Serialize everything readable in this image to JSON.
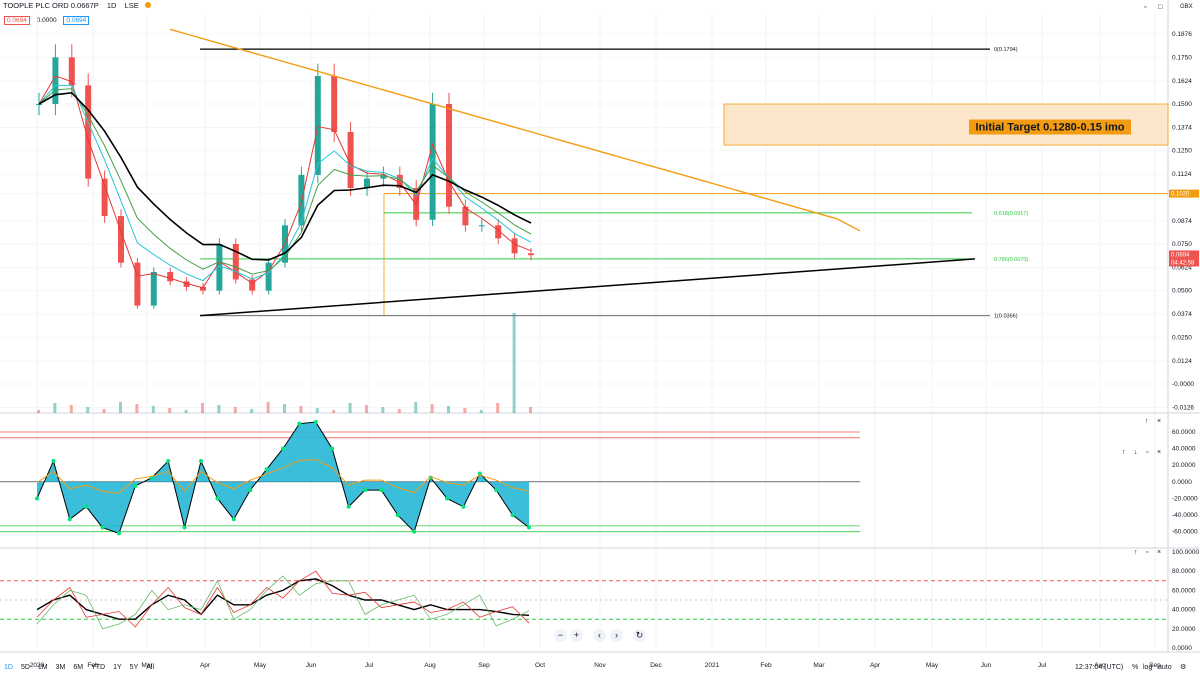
{
  "header": {
    "title": "TOOPLE PLC ORD 0.0667P",
    "interval": "1D",
    "exchange": "LSE",
    "bid": "0.0694",
    "spread": "0.0000",
    "ask": "0.0694",
    "currency": "GBX"
  },
  "colors": {
    "up": "#26a69a",
    "down": "#ef5350",
    "ema_fast": "#e53935",
    "ema_mid": "#26c6da",
    "ema_slow": "#43a047",
    "sma50": "#000000",
    "sma200": "#f39c12",
    "fib_green": "#2ecc40",
    "target_box": "#fde7cc",
    "osc_fill": "#26b7d6",
    "osc_line": "#f39c12"
  },
  "chart_data": [
    {
      "type": "line",
      "pane": "price",
      "title": "TOOPLE PLC ORD 0.0667P",
      "yticks": [
        "0.1876",
        "0.1750",
        "0.1624",
        "0.1500",
        "0.1374",
        "0.1250",
        "0.1124",
        "0.1020",
        "0.0874",
        "0.0750",
        "0.0624",
        "0.0500",
        "0.0374",
        "0.0250",
        "0.0124",
        "-0.0000",
        "-0.0126"
      ],
      "xticks": [
        "2020",
        "Feb",
        "Mar",
        "Apr",
        "May",
        "Jun",
        "Jul",
        "Aug",
        "Sep",
        "Oct",
        "Nov",
        "Dec",
        "2021",
        "Feb",
        "Mar",
        "Apr",
        "May",
        "Jun",
        "Jul",
        "Aug",
        "Sep"
      ],
      "ylim": [
        -0.015,
        0.195
      ],
      "x": [
        "2020-01-01",
        "2020-01-15",
        "2020-02-01",
        "2020-02-15",
        "2020-03-01",
        "2020-03-15",
        "2020-04-01",
        "2020-04-15",
        "2020-05-01",
        "2020-06-01",
        "2020-07-01",
        "2020-07-15",
        "2020-08-01",
        "2020-08-15",
        "2020-09-01",
        "2020-09-15",
        "2020-10-01",
        "2020-10-10",
        "2020-10-20",
        "2020-11-01",
        "2020-11-15",
        "2020-12-01",
        "2020-12-15",
        "2021-01-01",
        "2021-01-10",
        "2021-01-20",
        "2021-02-01",
        "2021-02-15",
        "2021-03-01",
        "2021-03-15",
        "2021-03-25"
      ],
      "series": [
        {
          "values": [
            0.15,
            0.175,
            0.16,
            0.11,
            0.09,
            0.065,
            0.042,
            0.06,
            0.055,
            0.052,
            0.05,
            0.075,
            0.056,
            0.05,
            0.065,
            0.085,
            0.112,
            0.165,
            0.135,
            0.105,
            0.11,
            0.112,
            0.105,
            0.088,
            0.15,
            0.095,
            0.085,
            0.085,
            0.078,
            0.07,
            0.069
          ]
        }
      ],
      "annotations": {
        "fib_0": "0(0.1794)",
        "fib_618": "0.618(0.0917)",
        "fib_786": "0.786(0.0670)",
        "fib_1": "1(0.0366)",
        "target_label": "Initial Target 0.1280-0.15 imo",
        "level_badge": "0.1020",
        "last_price": "0.0694",
        "countdown": "04:42:58",
        "price_scale_extra": "0.0624"
      }
    },
    {
      "type": "area",
      "pane": "oscillator",
      "yticks": [
        "60.0000",
        "40.0000",
        "20.0000",
        "0.0000",
        "-20.0000",
        "-40.0000",
        "-60.0000"
      ],
      "ylim": [
        -70,
        72
      ],
      "x": [
        "2020-01-01",
        "2020-01-15",
        "2020-02-01",
        "2020-02-15",
        "2020-03-01",
        "2020-03-15",
        "2020-04-01",
        "2020-04-15",
        "2020-05-01",
        "2020-06-01",
        "2020-07-01",
        "2020-07-15",
        "2020-08-01",
        "2020-08-15",
        "2020-09-01",
        "2020-09-15",
        "2020-10-01",
        "2020-10-10",
        "2020-10-20",
        "2020-11-01",
        "2020-11-15",
        "2020-12-01",
        "2020-12-15",
        "2021-01-01",
        "2021-01-10",
        "2021-01-20",
        "2021-02-01",
        "2021-02-15",
        "2021-03-01",
        "2021-03-15",
        "2021-03-25"
      ],
      "series": [
        {
          "values": [
            -20,
            25,
            -45,
            -30,
            -55,
            -62,
            -5,
            5,
            25,
            -55,
            25,
            -20,
            -45,
            -10,
            15,
            40,
            70,
            72,
            40,
            -30,
            -10,
            -10,
            -40,
            -60,
            5,
            -20,
            -30,
            10,
            -10,
            -40,
            -55
          ]
        }
      ]
    },
    {
      "type": "line",
      "pane": "rsi",
      "yticks": [
        "100.0000",
        "80.0000",
        "60.0000",
        "40.0000",
        "20.0000",
        "0.0000"
      ],
      "ylim": [
        0,
        100
      ],
      "x": [
        "2020-01-01",
        "2020-01-15",
        "2020-02-01",
        "2020-02-15",
        "2020-03-01",
        "2020-03-15",
        "2020-04-01",
        "2020-04-15",
        "2020-05-01",
        "2020-06-01",
        "2020-07-01",
        "2020-07-15",
        "2020-08-01",
        "2020-08-15",
        "2020-09-01",
        "2020-09-15",
        "2020-10-01",
        "2020-10-10",
        "2020-10-20",
        "2020-11-01",
        "2020-11-15",
        "2020-12-01",
        "2020-12-15",
        "2021-01-01",
        "2021-01-10",
        "2021-01-20",
        "2021-02-01",
        "2021-02-15",
        "2021-03-01",
        "2021-03-15",
        "2021-03-25"
      ],
      "series": [
        {
          "values": [
            40,
            50,
            55,
            40,
            35,
            30,
            30,
            45,
            55,
            50,
            35,
            55,
            45,
            45,
            55,
            60,
            70,
            72,
            65,
            55,
            50,
            50,
            45,
            40,
            45,
            40,
            40,
            40,
            38,
            35,
            34
          ]
        }
      ]
    }
  ],
  "range_bar": {
    "items": [
      "1D",
      "5D",
      "1M",
      "3M",
      "6M",
      "YTD",
      "1Y",
      "5Y",
      "All"
    ],
    "clock": "12:37:04 (UTC)",
    "percent": "%",
    "log": "log",
    "auto": "auto"
  }
}
